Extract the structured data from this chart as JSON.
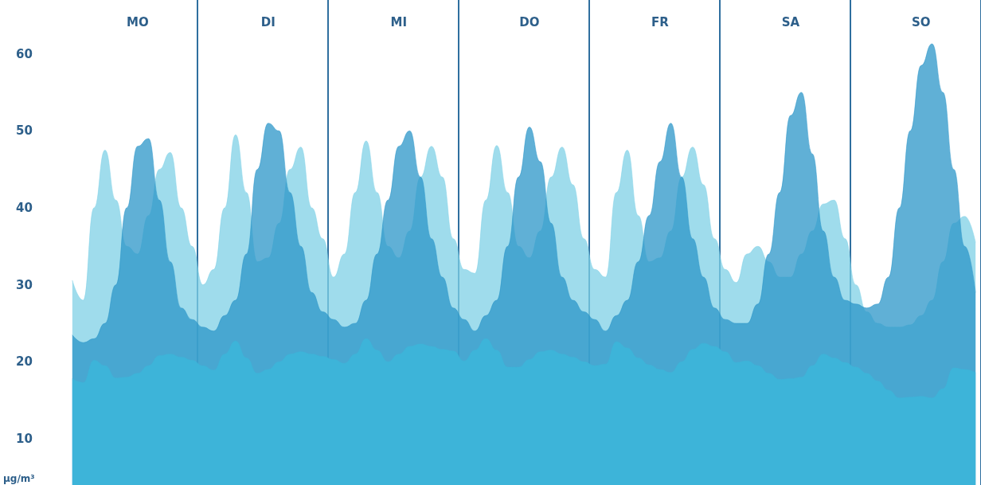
{
  "chart_data": {
    "type": "area",
    "ylabel": "µg/m³",
    "ylim": [
      4,
      67
    ],
    "yticks": [
      10,
      20,
      30,
      40,
      50,
      60
    ],
    "marker": "none",
    "grid": "x",
    "categories": [
      null,
      null,
      null,
      null,
      null,
      null,
      "MO",
      null,
      null,
      null,
      null,
      null,
      null,
      null,
      null,
      null,
      null,
      null,
      "DI",
      null,
      null,
      null,
      null,
      null,
      null,
      null,
      null,
      null,
      null,
      null,
      "MI",
      null,
      null,
      null,
      null,
      null,
      null,
      null,
      null,
      null,
      null,
      null,
      "DO",
      null,
      null,
      null,
      null,
      null,
      null,
      null,
      null,
      null,
      null,
      null,
      "FR",
      null,
      null,
      null,
      null,
      null,
      null,
      null,
      null,
      null,
      null,
      null,
      "SA",
      null,
      null,
      null,
      null,
      null,
      null,
      null,
      null,
      null,
      null,
      null,
      "SO",
      null,
      null,
      null,
      null,
      null
    ],
    "series": [
      {
        "color": "#7fd0e6",
        "values": [
          30.6,
          28,
          40,
          47.5,
          41,
          35,
          34,
          39,
          45,
          47.2,
          40,
          35,
          30,
          32,
          40,
          49.5,
          42,
          33,
          33.5,
          38,
          45,
          47.9,
          40,
          36,
          31,
          34,
          42,
          48.7,
          42,
          35,
          33.5,
          37,
          44,
          48,
          44,
          36,
          32,
          31.5,
          41,
          48.1,
          42,
          35,
          33.5,
          37,
          44,
          47.9,
          43,
          36,
          32,
          31,
          42,
          47.5,
          39,
          33,
          33.5,
          37,
          44,
          47.9,
          43,
          36,
          32,
          30.3,
          34,
          35,
          33,
          31,
          31,
          34,
          37,
          40.5,
          41,
          36,
          30,
          26.5,
          25,
          24.5,
          24.5,
          24.8,
          26,
          28,
          33,
          38,
          38.9,
          35.5
        ]
      },
      {
        "color": "#2b95c8",
        "values": [
          23.5,
          22.5,
          23,
          25,
          30,
          40,
          48,
          49,
          41,
          33,
          27,
          25.5,
          24.5,
          24,
          26,
          28,
          34,
          45,
          51,
          50,
          42,
          35,
          29,
          26.5,
          25.5,
          24.5,
          25,
          28,
          34,
          41,
          48,
          50,
          44,
          36,
          31,
          27,
          25.5,
          24,
          26,
          28,
          35,
          44,
          50.5,
          46,
          38,
          31,
          28,
          26.5,
          25.5,
          24,
          26,
          28,
          33,
          39,
          46,
          51,
          44,
          36,
          31,
          27,
          25.5,
          25,
          25,
          27.5,
          34,
          42,
          52,
          55,
          47,
          37,
          31,
          28,
          27.5,
          27,
          27.5,
          31,
          40,
          50,
          58.5,
          61.3,
          55,
          45,
          35,
          29
        ]
      },
      {
        "color": "#3db4d9",
        "values": [
          17.8,
          17.3,
          20.2,
          19.5,
          17.9,
          18,
          18.5,
          19.5,
          20.8,
          21,
          20.6,
          20.2,
          19.5,
          18.9,
          21,
          22.7,
          20.5,
          18.5,
          19,
          20,
          21,
          21.3,
          21,
          20.7,
          20.3,
          19.8,
          21,
          23,
          21.5,
          20,
          21,
          22,
          22.3,
          22,
          21.6,
          21.4,
          20.1,
          21.5,
          23,
          21.5,
          19.3,
          19.3,
          20.3,
          21.3,
          21.5,
          21,
          20.6,
          20,
          19.5,
          19.7,
          22.6,
          21.8,
          20.5,
          19.6,
          19,
          18.6,
          20,
          21.6,
          22.4,
          22,
          21.3,
          19.9,
          20.1,
          19.5,
          18.5,
          17.7,
          17.8,
          18,
          19.5,
          21,
          20.5,
          19.9,
          19.3,
          18.5,
          17.5,
          16.3,
          15.3,
          15.4,
          15.5,
          15.3,
          16.5,
          19.2,
          19,
          18.6
        ]
      }
    ]
  }
}
